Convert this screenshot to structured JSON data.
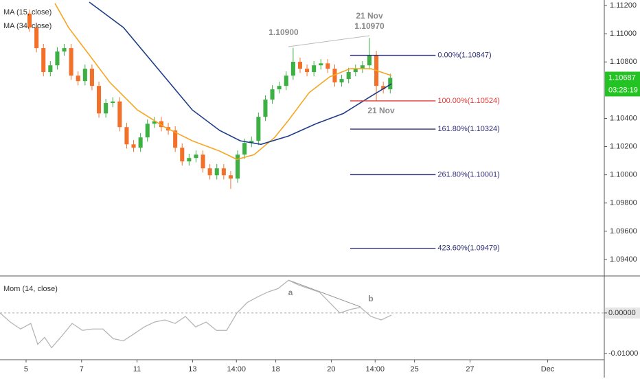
{
  "chart_data": [
    {
      "type": "candlestick",
      "x": [
        0.125,
        0.375,
        0.625,
        0.875,
        1.125,
        1.375,
        1.625,
        1.875,
        2.125,
        2.375,
        2.625,
        2.875,
        3.125,
        3.375,
        3.625,
        3.875,
        4.125,
        4.375,
        4.625,
        4.875,
        5.125,
        5.375,
        5.625,
        5.875,
        6.125,
        6.375,
        6.625,
        6.875,
        7.125,
        7.375,
        7.625,
        7.875,
        8.125,
        8.375,
        8.625,
        8.875,
        9.125,
        9.375,
        9.625,
        9.875,
        10.125,
        10.375,
        10.625,
        10.875,
        11.125,
        11.375,
        11.625,
        11.875,
        12.125,
        12.375,
        12.625,
        12.875,
        13.125
      ],
      "open": [
        1.11142,
        1.11044,
        1.10898,
        1.10728,
        1.10776,
        1.10874,
        1.10898,
        1.10703,
        1.10664,
        1.10752,
        1.1063,
        1.10435,
        1.10509,
        1.1052,
        1.10338,
        1.10216,
        1.10192,
        1.10265,
        1.10362,
        1.1038,
        1.10338,
        1.10314,
        1.10192,
        1.10095,
        1.10119,
        1.10143,
        1.10046,
        1.09997,
        1.10046,
        1.09997,
        1.09973,
        1.10143,
        1.10226,
        1.10241,
        1.10411,
        1.10533,
        1.10606,
        1.1063,
        1.10703,
        1.10801,
        1.10752,
        1.10728,
        1.10776,
        1.1079,
        1.10752,
        1.10655,
        1.10679,
        1.10728,
        1.10752,
        1.10776,
        1.10849,
        1.1063,
        1.10606
      ],
      "high": [
        1.11172,
        1.11074,
        1.10928,
        1.10806,
        1.10904,
        1.10928,
        1.10928,
        1.10733,
        1.10782,
        1.10782,
        1.1066,
        1.10539,
        1.1055,
        1.1055,
        1.10368,
        1.10246,
        1.10295,
        1.10392,
        1.1041,
        1.1041,
        1.10368,
        1.10344,
        1.10222,
        1.10149,
        1.10173,
        1.10173,
        1.10076,
        1.10076,
        1.10076,
        1.10027,
        1.10173,
        1.10256,
        1.10271,
        1.10441,
        1.10563,
        1.10636,
        1.1066,
        1.10733,
        1.109,
        1.10831,
        1.10782,
        1.10806,
        1.1082,
        1.1082,
        1.10782,
        1.10709,
        1.10758,
        1.10782,
        1.10806,
        1.1097,
        1.10879,
        1.1066,
        1.10717
      ],
      "low": [
        1.11014,
        1.10868,
        1.10698,
        1.10698,
        1.10746,
        1.10844,
        1.10673,
        1.10634,
        1.10634,
        1.106,
        1.10405,
        1.10405,
        1.10479,
        1.10308,
        1.10186,
        1.10162,
        1.10162,
        1.10235,
        1.10332,
        1.10308,
        1.10284,
        1.10162,
        1.10065,
        1.10065,
        1.10089,
        1.10016,
        1.09967,
        1.09967,
        1.09967,
        1.099,
        1.09943,
        1.10113,
        1.10196,
        1.10211,
        1.10381,
        1.10503,
        1.10576,
        1.106,
        1.10673,
        1.10722,
        1.10698,
        1.10698,
        1.10746,
        1.10722,
        1.10625,
        1.10625,
        1.10649,
        1.10698,
        1.10722,
        1.10746,
        1.10524,
        1.10576,
        1.10576
      ],
      "close": [
        1.11044,
        1.10898,
        1.10728,
        1.10776,
        1.10874,
        1.10898,
        1.10703,
        1.10664,
        1.10752,
        1.1063,
        1.10435,
        1.10509,
        1.1052,
        1.10338,
        1.10216,
        1.10192,
        1.10265,
        1.10362,
        1.1038,
        1.10338,
        1.10314,
        1.10192,
        1.10095,
        1.10119,
        1.10143,
        1.10046,
        1.09997,
        1.10046,
        1.09997,
        1.09973,
        1.10143,
        1.10226,
        1.10241,
        1.10411,
        1.10533,
        1.10606,
        1.1063,
        1.10703,
        1.10801,
        1.10752,
        1.10728,
        1.10776,
        1.1079,
        1.10752,
        1.10655,
        1.10679,
        1.10728,
        1.10752,
        1.10776,
        1.10849,
        1.1063,
        1.10606,
        1.10687
      ],
      "up_color": "#3cb043",
      "down_color": "#f3702a",
      "series": [
        {
          "name": "MA (15, close)",
          "color": "#f5a623",
          "x": [
            1.04,
            1.53,
            2.28,
            3.02,
            4.01,
            5.0,
            5.99,
            6.98,
            7.6,
            8.22,
            8.96,
            9.46,
            10.2,
            10.94,
            11.68,
            12.43,
            13.17
          ],
          "values": [
            1.11215,
            1.11044,
            1.10849,
            1.10655,
            1.1046,
            1.10338,
            1.10241,
            1.10168,
            1.10109,
            1.10143,
            1.10265,
            1.10387,
            1.10582,
            1.10694,
            1.10752,
            1.10752,
            1.10703
          ]
        },
        {
          "name": "MA (34, close)",
          "color": "#1f3c88",
          "x": [
            2.28,
            3.51,
            4.75,
            5.99,
            6.98,
            7.72,
            8.47,
            9.46,
            10.45,
            11.44,
            12.43,
            13.17
          ],
          "values": [
            1.11224,
            1.11044,
            1.10752,
            1.1046,
            1.10314,
            1.10241,
            1.10216,
            1.10275,
            1.10362,
            1.10435,
            1.10557,
            1.10645
          ]
        }
      ],
      "xlim": [
        -0.94,
        20.84
      ],
      "xticks": [
        {
          "value": 0,
          "label": "5"
        },
        {
          "value": 2,
          "label": "7"
        },
        {
          "value": 4,
          "label": "11"
        },
        {
          "value": 6,
          "label": "13"
        },
        {
          "value": 7.58,
          "label": "14:00"
        },
        {
          "value": 9,
          "label": "18"
        },
        {
          "value": 11,
          "label": "20"
        },
        {
          "value": 12.58,
          "label": "14:00"
        },
        {
          "value": 14,
          "label": "25"
        },
        {
          "value": 16,
          "label": "27"
        },
        {
          "value": 18.8,
          "label": "Dec"
        }
      ],
      "ylim": [
        1.09283,
        1.11239
      ],
      "yticks": [
        {
          "value": 1.112,
          "label": "1.11200"
        },
        {
          "value": 1.11,
          "label": "1.11000"
        },
        {
          "value": 1.108,
          "label": "1.10800"
        },
        {
          "value": 1.104,
          "label": "1.10400"
        },
        {
          "value": 1.102,
          "label": "1.10200"
        },
        {
          "value": 1.1,
          "label": "1.10000"
        },
        {
          "value": 1.098,
          "label": "1.09800"
        },
        {
          "value": 1.096,
          "label": "1.09600"
        },
        {
          "value": 1.094,
          "label": "1.09400"
        }
      ],
      "fib": {
        "x": [
          11.68,
          14.76
        ],
        "levels": [
          {
            "value": 1.10847,
            "label": "0.00%(1.10847)",
            "color": "#2e2e7a"
          },
          {
            "value": 1.10524,
            "label": "100.00%(1.10524)",
            "color": "#e53935"
          },
          {
            "value": 1.10324,
            "label": "161.80%(1.10324)",
            "color": "#2e2e7a"
          },
          {
            "value": 1.10001,
            "label": "261.80%(1.10001)",
            "color": "#2e2e7a"
          },
          {
            "value": 1.09479,
            "label": "423.60%(1.09479)",
            "color": "#2e2e7a"
          }
        ]
      },
      "annotations": [
        "1.10900",
        "21 Nov",
        "1.10970",
        "21 Nov"
      ],
      "last_price": {
        "value": 1.10687,
        "label": "1.10687",
        "countdown": "03:28:19",
        "color": "#22c322"
      }
    },
    {
      "type": "line",
      "title": "Mom (14, close)",
      "color": "#b5b5b5",
      "x": [
        -0.94,
        -0.57,
        -0.2,
        0.17,
        0.42,
        0.67,
        0.92,
        1.29,
        1.66,
        2.03,
        2.4,
        2.77,
        3.14,
        3.51,
        3.89,
        4.26,
        4.63,
        5.0,
        5.37,
        5.74,
        6.11,
        6.49,
        6.86,
        7.23,
        7.6,
        7.97,
        8.34,
        8.71,
        9.08,
        9.46,
        9.83,
        10.2,
        10.57,
        10.94,
        11.31,
        11.68,
        12.05,
        12.43,
        12.8,
        13.17
      ],
      "values": [
        0,
        -0.00224,
        -0.00396,
        -0.00258,
        -0.00774,
        -0.00602,
        -0.0086,
        -0.00568,
        -0.00258,
        -0.0043,
        -0.00396,
        -0.00396,
        -0.00636,
        -0.00688,
        -0.00516,
        -0.00344,
        -0.00224,
        -0.00172,
        -0.00258,
        -0.00086,
        -0.00344,
        -0.00224,
        -0.0043,
        -0.0043,
        0,
        0.00258,
        0.00396,
        0.00516,
        0.00602,
        0.00808,
        0.00688,
        0.00602,
        0.00516,
        0.00258,
        0,
        0.00086,
        0.00138,
        -0.00086,
        -0.00172,
        -0.00052
      ],
      "xlim": [
        -0.94,
        20.84
      ],
      "ylim": [
        -0.01155,
        0.00914
      ],
      "yticks": [
        {
          "value": 0,
          "label": "0.00000"
        },
        {
          "value": -0.01,
          "label": "-0.01000"
        }
      ],
      "annotations": [
        "a",
        "b"
      ]
    }
  ]
}
